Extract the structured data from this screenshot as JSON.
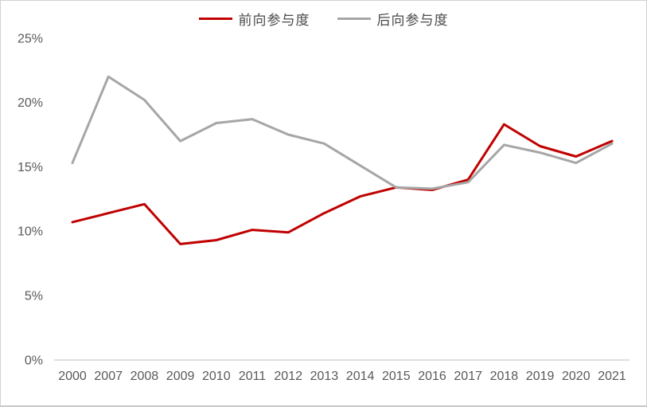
{
  "chart_data": {
    "type": "line",
    "title": "",
    "categories": [
      "2000",
      "2007",
      "2008",
      "2009",
      "2010",
      "2011",
      "2012",
      "2013",
      "2014",
      "2015",
      "2016",
      "2017",
      "2018",
      "2019",
      "2020",
      "2021"
    ],
    "series": [
      {
        "name": "前向参与度",
        "color": "#C00000",
        "values": [
          10.7,
          11.4,
          12.1,
          9.0,
          9.3,
          10.1,
          9.9,
          11.4,
          12.7,
          13.4,
          13.2,
          14.0,
          18.3,
          16.6,
          15.8,
          17.0
        ]
      },
      {
        "name": "后向参与度",
        "color": "#A6A6A6",
        "values": [
          15.3,
          22.0,
          20.2,
          17.0,
          18.4,
          18.7,
          17.5,
          16.8,
          15.1,
          13.4,
          13.3,
          13.8,
          16.7,
          16.1,
          15.3,
          16.8
        ]
      }
    ],
    "unit": "percent",
    "ylim": [
      0,
      25
    ],
    "ytick_step": 5,
    "y_ticks": [
      "0%",
      "5%",
      "10%",
      "15%",
      "20%",
      "25%"
    ],
    "grid": false,
    "legend_position": "top-center",
    "axis_color": "#D9D9D9",
    "tick_text_color": "#595959"
  }
}
